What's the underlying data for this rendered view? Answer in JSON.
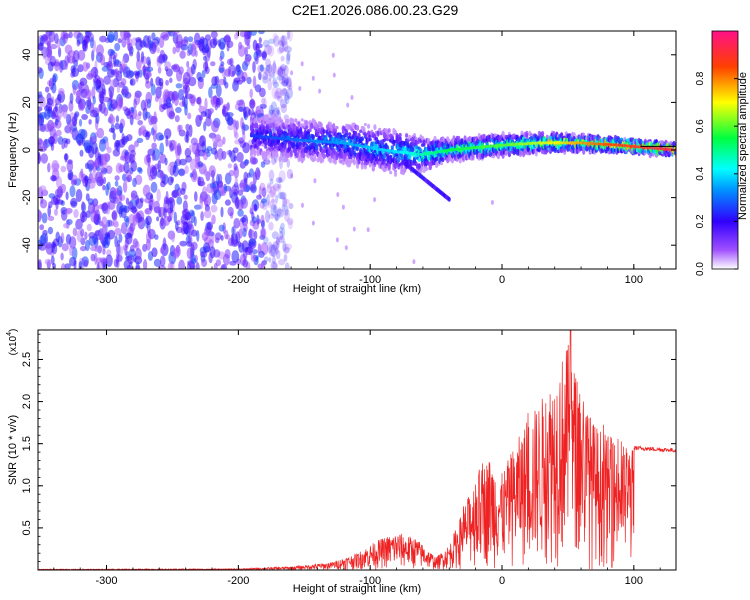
{
  "title": "C2E1.2026.086.00.23.G29",
  "chart_data": [
    {
      "type": "heatmap",
      "name": "spectrogram",
      "xlabel": "Height of straight line (km)",
      "ylabel": "Frequency (Hz)",
      "xlim": [
        -352,
        132
      ],
      "ylim": [
        -50,
        50
      ],
      "xticks": [
        -300,
        -200,
        -100,
        0,
        100
      ],
      "xtick_labels": [
        "-300",
        "-200",
        "-100",
        "0",
        "100"
      ],
      "yticks": [
        -40,
        -20,
        0,
        20,
        40
      ],
      "ytick_labels": [
        "-40",
        "-20",
        "0",
        "20",
        "40"
      ],
      "colorbar": {
        "label": "Normalized spectral amplitude",
        "range": [
          0,
          1
        ],
        "ticks": [
          0.0,
          0.2,
          0.4,
          0.6,
          0.8
        ],
        "tick_labels": [
          "0.0",
          "0.2",
          "0.4",
          "0.6",
          "0.8"
        ],
        "colormap": [
          "#ffffff",
          "#8f00ff",
          "#0000ff",
          "#00ffff",
          "#00ff00",
          "#ffff00",
          "#ff0000",
          "#ff00aa"
        ]
      },
      "features": {
        "noise_region_x": [
          -352,
          -160
        ],
        "signal_start_x": -190,
        "signal_center_hz": [
          [
            -190,
            6
          ],
          [
            -150,
            4
          ],
          [
            -120,
            3
          ],
          [
            -90,
            0
          ],
          [
            -60,
            -2
          ],
          [
            -40,
            0
          ],
          [
            -20,
            1
          ],
          [
            0,
            2
          ],
          [
            30,
            3
          ],
          [
            60,
            3
          ],
          [
            90,
            2
          ],
          [
            132,
            0
          ]
        ],
        "signal_halfwidth_hz": [
          [
            -190,
            8
          ],
          [
            -120,
            8
          ],
          [
            -80,
            9
          ],
          [
            -40,
            4
          ],
          [
            0,
            4
          ],
          [
            60,
            3
          ],
          [
            132,
            2
          ]
        ],
        "peak_amplitude": [
          [
            -190,
            0.25
          ],
          [
            -120,
            0.35
          ],
          [
            -80,
            0.4
          ],
          [
            -40,
            0.55
          ],
          [
            0,
            0.6
          ],
          [
            40,
            0.7
          ],
          [
            80,
            0.85
          ],
          [
            132,
            0.95
          ]
        ]
      }
    },
    {
      "type": "line",
      "name": "snr",
      "xlabel": "Height of straight line (km)",
      "ylabel": "SNR (10 * v/v)",
      "y_scale_label": "(x10",
      "y_scale_exp": "4",
      "y_scale_close": ")",
      "xlim": [
        -352,
        132
      ],
      "ylim": [
        0,
        2.85
      ],
      "xticks": [
        -300,
        -200,
        -100,
        0,
        100
      ],
      "xtick_labels": [
        "-300",
        "-200",
        "-100",
        "0",
        "100"
      ],
      "yticks": [
        0.5,
        1.0,
        1.5,
        2.0,
        2.5
      ],
      "ytick_labels": [
        "0.5",
        "1.0",
        "1.5",
        "2.0",
        "2.5"
      ],
      "color": "#ee2222",
      "envelope": [
        [
          -352,
          0.01
        ],
        [
          -200,
          0.015
        ],
        [
          -160,
          0.04
        ],
        [
          -130,
          0.09
        ],
        [
          -110,
          0.2
        ],
        [
          -95,
          0.35
        ],
        [
          -80,
          0.45
        ],
        [
          -65,
          0.38
        ],
        [
          -50,
          0.15
        ],
        [
          -40,
          0.3
        ],
        [
          -30,
          0.7
        ],
        [
          -20,
          1.1
        ],
        [
          -10,
          1.35
        ],
        [
          0,
          1.15
        ],
        [
          10,
          1.5
        ],
        [
          20,
          1.8
        ],
        [
          30,
          2.05
        ],
        [
          40,
          2.35
        ],
        [
          50,
          2.7
        ],
        [
          60,
          2.1
        ],
        [
          70,
          1.75
        ],
        [
          80,
          1.6
        ],
        [
          90,
          1.5
        ],
        [
          100,
          1.45
        ],
        [
          132,
          1.42
        ]
      ],
      "features": {
        "plateau_value": 1.42,
        "plateau_start_x": 100,
        "max_value": 2.85,
        "max_x": 52
      }
    }
  ]
}
